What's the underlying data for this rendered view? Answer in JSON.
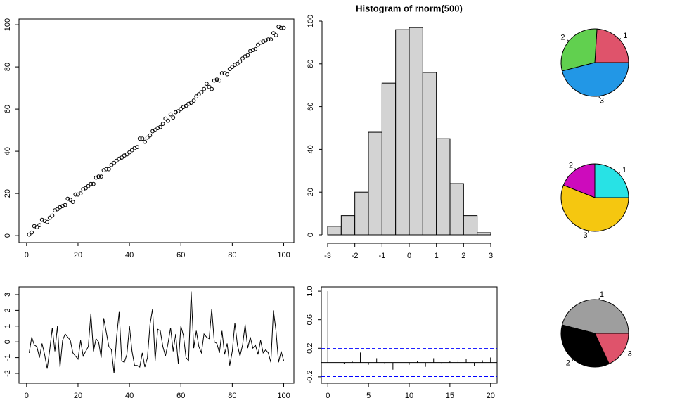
{
  "chart_data": [
    {
      "type": "scatter",
      "x": [
        1,
        2,
        3,
        4,
        5,
        6,
        7,
        8,
        9,
        10,
        11,
        12,
        13,
        14,
        15,
        16,
        17,
        18,
        19,
        20,
        21,
        22,
        23,
        24,
        25,
        26,
        27,
        28,
        29,
        30,
        31,
        32,
        33,
        34,
        35,
        36,
        37,
        38,
        39,
        40,
        41,
        42,
        43,
        44,
        45,
        46,
        47,
        48,
        49,
        50,
        51,
        52,
        53,
        54,
        55,
        56,
        57,
        58,
        59,
        60,
        61,
        62,
        63,
        64,
        65,
        66,
        67,
        68,
        69,
        70,
        71,
        72,
        73,
        74,
        75,
        76,
        77,
        78,
        79,
        80,
        81,
        82,
        83,
        84,
        85,
        86,
        87,
        88,
        89,
        90,
        91,
        92,
        93,
        94,
        95,
        96,
        97,
        98,
        99,
        100
      ],
      "y": [
        0.5,
        1.5,
        4.5,
        4,
        5,
        7.5,
        7,
        6.5,
        8.5,
        9.5,
        12,
        12.5,
        13.5,
        14,
        14.5,
        17.5,
        17,
        16,
        19.5,
        19.5,
        20,
        22,
        22.5,
        23.5,
        24.5,
        24.5,
        27.5,
        28,
        28,
        31,
        31.5,
        31.5,
        33.5,
        34.5,
        35.5,
        36.5,
        37,
        38,
        38.5,
        39.5,
        40.5,
        41.5,
        42,
        46,
        46,
        44.5,
        46.5,
        47.5,
        49.5,
        50,
        51,
        51.5,
        53,
        55.5,
        54.5,
        57.5,
        56,
        58.5,
        59,
        60,
        61,
        61.5,
        62.5,
        63,
        64,
        66,
        67,
        68,
        69.5,
        72,
        70.5,
        69.5,
        73.5,
        74,
        73.5,
        77,
        77,
        76.5,
        79,
        80,
        81,
        81.5,
        82.5,
        84,
        85,
        85.5,
        87.5,
        88,
        88.5,
        90.5,
        91.5,
        92,
        92.5,
        93,
        93,
        96,
        95,
        99,
        98.5,
        98.5
      ],
      "xlim": [
        -2.96,
        103.96
      ],
      "ylim": [
        -3.3,
        102.7
      ],
      "xticks": [
        0,
        20,
        40,
        60,
        80,
        100
      ],
      "yticks": [
        0,
        20,
        40,
        60,
        80,
        100
      ],
      "color": "#000000"
    },
    {
      "type": "histogram",
      "title": "Histogram of rnorm(500)",
      "bins": [
        -3,
        -2.5,
        -2,
        -1.5,
        -1,
        -0.5,
        0,
        0.5,
        1,
        1.5,
        2,
        2.5,
        3
      ],
      "counts": [
        4,
        9,
        20,
        48,
        71,
        96,
        97,
        76,
        45,
        24,
        9,
        1
      ],
      "xlim": [
        -3,
        3
      ],
      "ylim": [
        0,
        100
      ],
      "xticks": [
        -3,
        -2,
        -1,
        0,
        1,
        2,
        3
      ],
      "yticks": [
        0,
        20,
        40,
        60,
        80,
        100
      ],
      "color": "#d3d3d3"
    },
    {
      "type": "pie",
      "categories": [
        "1",
        "2",
        "3"
      ],
      "values": [
        24,
        30,
        46
      ],
      "colors": [
        "#DF536B",
        "#61D04F",
        "#2297E6"
      ]
    },
    {
      "type": "pie",
      "categories": [
        "1",
        "2",
        "3"
      ],
      "values": [
        25,
        19,
        56
      ],
      "colors": [
        "#28E2E5",
        "#CD0BBC",
        "#F5C710"
      ]
    },
    {
      "type": "pie",
      "categories": [
        "1",
        "2",
        "3"
      ],
      "values": [
        46,
        36,
        18
      ],
      "colors": [
        "#9E9E9E",
        "#000000",
        "#DF536B"
      ]
    },
    {
      "type": "line",
      "x": [
        1,
        2,
        3,
        4,
        5,
        6,
        7,
        8,
        9,
        10,
        11,
        12,
        13,
        14,
        15,
        16,
        17,
        18,
        19,
        20,
        21,
        22,
        23,
        24,
        25,
        26,
        27,
        28,
        29,
        30,
        31,
        32,
        33,
        34,
        35,
        36,
        37,
        38,
        39,
        40,
        41,
        42,
        43,
        44,
        45,
        46,
        47,
        48,
        49,
        50,
        51,
        52,
        53,
        54,
        55,
        56,
        57,
        58,
        59,
        60,
        61,
        62,
        63,
        64,
        65,
        66,
        67,
        68,
        69,
        70,
        71,
        72,
        73,
        74,
        75,
        76,
        77,
        78,
        79,
        80,
        81,
        82,
        83,
        84,
        85,
        86,
        87,
        88,
        89,
        90,
        91,
        92,
        93,
        94,
        95,
        96,
        97,
        98,
        99,
        100
      ],
      "y": [
        -0.7,
        0.3,
        -0.2,
        -0.3,
        -1.0,
        -0.1,
        -0.8,
        -1.7,
        -0.5,
        0.9,
        -0.6,
        1.0,
        -1.6,
        0.1,
        0.5,
        0.3,
        0.1,
        -0.7,
        -0.9,
        -1.1,
        0.1,
        -0.9,
        -0.6,
        -0.3,
        1.8,
        -0.6,
        0.2,
        0.0,
        -1.0,
        1.5,
        0.6,
        -0.3,
        -0.5,
        -2.0,
        0.3,
        1.9,
        -1.2,
        -1.3,
        -0.8,
        1.0,
        -0.6,
        -1.5,
        -1.5,
        -1.6,
        -0.7,
        -1.6,
        -1.0,
        1.1,
        2.1,
        -1.2,
        0.8,
        0.7,
        -0.3,
        -0.9,
        -0.1,
        0.9,
        -0.6,
        0.5,
        -1.4,
        1.0,
        0.4,
        -1.0,
        -1.2,
        3.2,
        -0.4,
        0.7,
        -0.3,
        -0.7,
        0.5,
        0.3,
        0.2,
        2.1,
        0.0,
        -0.1,
        -0.7,
        0.7,
        -0.8,
        -0.1,
        -1.5,
        -0.6,
        1.2,
        -0.2,
        -0.9,
        -0.2,
        1.1,
        -0.4,
        0.3,
        -0.4,
        -0.2,
        -0.8,
        0.1,
        -0.7,
        -0.5,
        -0.7,
        -1.3,
        2.0,
        0.7,
        -1.3,
        -0.6,
        -1.2
      ],
      "xlim": [
        -2.96,
        103.96
      ],
      "ylim": [
        -2.625,
        3.49
      ],
      "xticks": [
        0,
        20,
        40,
        60,
        80,
        100
      ],
      "yticks": [
        -2,
        -1,
        0,
        1,
        2,
        3
      ],
      "color": "#000000"
    },
    {
      "type": "acf",
      "x": [
        0,
        1,
        2,
        3,
        4,
        5,
        6,
        7,
        8,
        9,
        10,
        11,
        12,
        13,
        14,
        15,
        16,
        17,
        18,
        19,
        20
      ],
      "values": [
        1,
        0.0,
        -0.02,
        0.02,
        0.14,
        -0.03,
        0.06,
        -0.02,
        -0.1,
        0.0,
        -0.03,
        0.02,
        -0.06,
        0.06,
        -0.01,
        0.02,
        0.03,
        0.05,
        -0.05,
        0.03,
        0.07
      ],
      "conf_lines": [
        0.196,
        -0.196
      ],
      "conf_color": "#0000FF",
      "xlim": [
        -0.8,
        20.8
      ],
      "ylim": [
        -0.29,
        1.06
      ],
      "xticks": [
        0,
        5,
        10,
        15,
        20
      ],
      "yticks": [
        -0.2,
        0.2,
        0.6,
        {
          "value": 1,
          "label": "1.0"
        }
      ],
      "color": "#000000"
    }
  ]
}
